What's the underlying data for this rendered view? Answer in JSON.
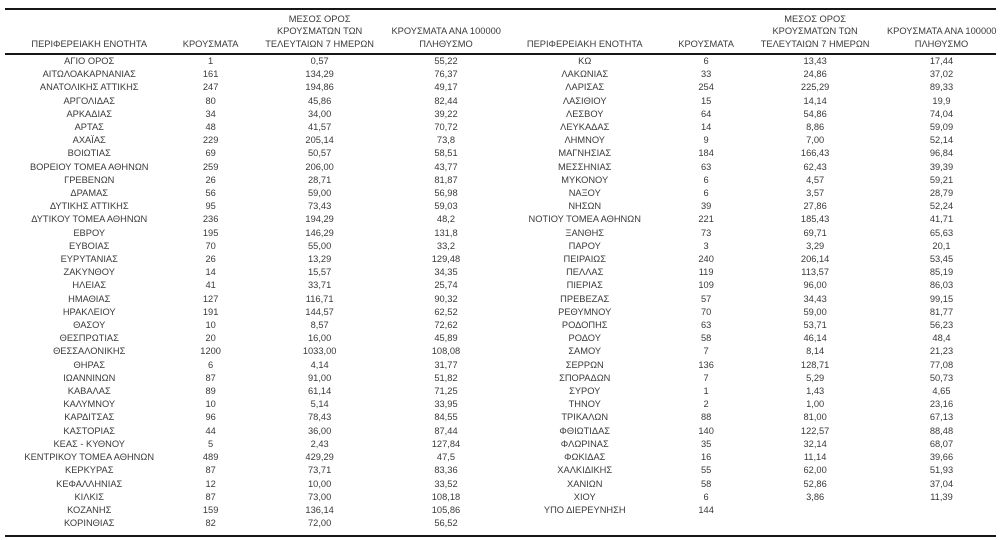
{
  "table": {
    "colors": {
      "text": "#3a3a3a",
      "border": "#161616",
      "background": "#ffffff"
    },
    "headers": [
      "ΠΕΡΙΦΕΡΕΙΑΚΗ ΕΝΟΤΗΤΑ",
      "ΚΡΟΥΣΜΑΤΑ",
      [
        "ΜΕΣΟΣ ΟΡΟΣ",
        "ΚΡΟΥΣΜΑΤΩΝ ΤΩΝ",
        "ΤΕΛΕΥΤΑΙΩΝ 7 ΗΜΕΡΩΝ"
      ],
      [
        "ΚΡΟΥΣΜΑΤΑ ΑΝΑ 100000",
        "ΠΛΗΘΥΣΜΟ"
      ]
    ],
    "panels": [
      {
        "rows": [
          [
            "ΑΓΙΟ ΟΡΟΣ",
            "1",
            "0,57",
            "55,22"
          ],
          [
            "ΑΙΤΩΛΟΑΚΑΡΝΑΝΙΑΣ",
            "161",
            "134,29",
            "76,37"
          ],
          [
            "ΑΝΑΤΟΛΙΚΗΣ ΑΤΤΙΚΗΣ",
            "247",
            "194,86",
            "49,17"
          ],
          [
            "ΑΡΓΟΛΙΔΑΣ",
            "80",
            "45,86",
            "82,44"
          ],
          [
            "ΑΡΚΑΔΙΑΣ",
            "34",
            "34,00",
            "39,22"
          ],
          [
            "ΑΡΤΑΣ",
            "48",
            "41,57",
            "70,72"
          ],
          [
            "ΑΧΑΪΑΣ",
            "229",
            "205,14",
            "73,8"
          ],
          [
            "ΒΟΙΩΤΙΑΣ",
            "69",
            "50,57",
            "58,51"
          ],
          [
            "ΒΟΡΕΙΟΥ ΤΟΜΕΑ ΑΘΗΝΩΝ",
            "259",
            "206,00",
            "43,77"
          ],
          [
            "ΓΡΕΒΕΝΩΝ",
            "26",
            "28,71",
            "81,87"
          ],
          [
            "ΔΡΑΜΑΣ",
            "56",
            "59,00",
            "56,98"
          ],
          [
            "ΔΥΤΙΚΗΣ ΑΤΤΙΚΗΣ",
            "95",
            "73,43",
            "59,03"
          ],
          [
            "ΔΥΤΙΚΟΥ ΤΟΜΕΑ ΑΘΗΝΩΝ",
            "236",
            "194,29",
            "48,2"
          ],
          [
            "ΕΒΡΟΥ",
            "195",
            "146,29",
            "131,8"
          ],
          [
            "ΕΥΒΟΙΑΣ",
            "70",
            "55,00",
            "33,2"
          ],
          [
            "ΕΥΡΥΤΑΝΙΑΣ",
            "26",
            "13,29",
            "129,48"
          ],
          [
            "ΖΑΚΥΝΘΟΥ",
            "14",
            "15,57",
            "34,35"
          ],
          [
            "ΗΛΕΙΑΣ",
            "41",
            "33,71",
            "25,74"
          ],
          [
            "ΗΜΑΘΙΑΣ",
            "127",
            "116,71",
            "90,32"
          ],
          [
            "ΗΡΑΚΛΕΙΟΥ",
            "191",
            "144,57",
            "62,52"
          ],
          [
            "ΘΑΣΟΥ",
            "10",
            "8,57",
            "72,62"
          ],
          [
            "ΘΕΣΠΡΩΤΙΑΣ",
            "20",
            "16,00",
            "45,89"
          ],
          [
            "ΘΕΣΣΑΛΟΝΙΚΗΣ",
            "1200",
            "1033,00",
            "108,08"
          ],
          [
            "ΘΗΡΑΣ",
            "6",
            "4,14",
            "31,77"
          ],
          [
            "ΙΩΑΝΝΙΝΩΝ",
            "87",
            "91,00",
            "51,82"
          ],
          [
            "ΚΑΒΑΛΑΣ",
            "89",
            "61,14",
            "71,25"
          ],
          [
            "ΚΑΛΥΜΝΟΥ",
            "10",
            "5,14",
            "33,95"
          ],
          [
            "ΚΑΡΔΙΤΣΑΣ",
            "96",
            "78,43",
            "84,55"
          ],
          [
            "ΚΑΣΤΟΡΙΑΣ",
            "44",
            "36,00",
            "87,44"
          ],
          [
            "ΚΕΑΣ - ΚΥΘΝΟΥ",
            "5",
            "2,43",
            "127,84"
          ],
          [
            "ΚΕΝΤΡΙΚΟΥ ΤΟΜΕΑ ΑΘΗΝΩΝ",
            "489",
            "429,29",
            "47,5"
          ],
          [
            "ΚΕΡΚΥΡΑΣ",
            "87",
            "73,71",
            "83,36"
          ],
          [
            "ΚΕΦΑΛΛΗΝΙΑΣ",
            "12",
            "10,00",
            "33,52"
          ],
          [
            "ΚΙΛΚΙΣ",
            "87",
            "73,00",
            "108,18"
          ],
          [
            "ΚΟΖΑΝΗΣ",
            "159",
            "136,14",
            "105,86"
          ],
          [
            "ΚΟΡΙΝΘΙΑΣ",
            "82",
            "72,00",
            "56,52"
          ]
        ]
      },
      {
        "rows": [
          [
            "ΚΩ",
            "6",
            "13,43",
            "17,44"
          ],
          [
            "ΛΑΚΩΝΙΑΣ",
            "33",
            "24,86",
            "37,02"
          ],
          [
            "ΛΑΡΙΣΑΣ",
            "254",
            "225,29",
            "89,33"
          ],
          [
            "ΛΑΣΙΘΙΟΥ",
            "15",
            "14,14",
            "19,9"
          ],
          [
            "ΛΕΣΒΟΥ",
            "64",
            "54,86",
            "74,04"
          ],
          [
            "ΛΕΥΚΑΔΑΣ",
            "14",
            "8,86",
            "59,09"
          ],
          [
            "ΛΗΜΝΟΥ",
            "9",
            "7,00",
            "52,14"
          ],
          [
            "ΜΑΓΝΗΣΙΑΣ",
            "184",
            "166,43",
            "96,84"
          ],
          [
            "ΜΕΣΣΗΝΙΑΣ",
            "63",
            "62,43",
            "39,39"
          ],
          [
            "ΜΥΚΟΝΟΥ",
            "6",
            "4,57",
            "59,21"
          ],
          [
            "ΝΑΞΟΥ",
            "6",
            "3,57",
            "28,79"
          ],
          [
            "ΝΗΣΩΝ",
            "39",
            "27,86",
            "52,24"
          ],
          [
            "ΝΟΤΙΟΥ ΤΟΜΕΑ ΑΘΗΝΩΝ",
            "221",
            "185,43",
            "41,71"
          ],
          [
            "ΞΑΝΘΗΣ",
            "73",
            "69,71",
            "65,63"
          ],
          [
            "ΠΑΡΟΥ",
            "3",
            "3,29",
            "20,1"
          ],
          [
            "ΠΕΙΡΑΙΩΣ",
            "240",
            "206,14",
            "53,45"
          ],
          [
            "ΠΕΛΛΑΣ",
            "119",
            "113,57",
            "85,19"
          ],
          [
            "ΠΙΕΡΙΑΣ",
            "109",
            "96,00",
            "86,03"
          ],
          [
            "ΠΡΕΒΕΖΑΣ",
            "57",
            "34,43",
            "99,15"
          ],
          [
            "ΡΕΘΥΜΝΟΥ",
            "70",
            "59,00",
            "81,77"
          ],
          [
            "ΡΟΔΟΠΗΣ",
            "63",
            "53,71",
            "56,23"
          ],
          [
            "ΡΟΔΟΥ",
            "58",
            "46,14",
            "48,4"
          ],
          [
            "ΣΑΜΟΥ",
            "7",
            "8,14",
            "21,23"
          ],
          [
            "ΣΕΡΡΩΝ",
            "136",
            "128,71",
            "77,08"
          ],
          [
            "ΣΠΟΡΑΔΩΝ",
            "7",
            "5,29",
            "50,73"
          ],
          [
            "ΣΥΡΟΥ",
            "1",
            "1,43",
            "4,65"
          ],
          [
            "ΤΗΝΟΥ",
            "2",
            "1,00",
            "23,16"
          ],
          [
            "ΤΡΙΚΑΛΩΝ",
            "88",
            "81,00",
            "67,13"
          ],
          [
            "ΦΘΙΩΤΙΔΑΣ",
            "140",
            "122,57",
            "88,48"
          ],
          [
            "ΦΛΩΡΙΝΑΣ",
            "35",
            "32,14",
            "68,07"
          ],
          [
            "ΦΩΚΙΔΑΣ",
            "16",
            "11,14",
            "39,66"
          ],
          [
            "ΧΑΛΚΙΔΙΚΗΣ",
            "55",
            "62,00",
            "51,93"
          ],
          [
            "ΧΑΝΙΩΝ",
            "58",
            "52,86",
            "37,04"
          ],
          [
            "ΧΙΟΥ",
            "6",
            "3,86",
            "11,39"
          ],
          [
            "ΥΠΟ ΔΙΕΡΕΥΝΗΣΗ",
            "144",
            "",
            ""
          ]
        ]
      }
    ]
  }
}
